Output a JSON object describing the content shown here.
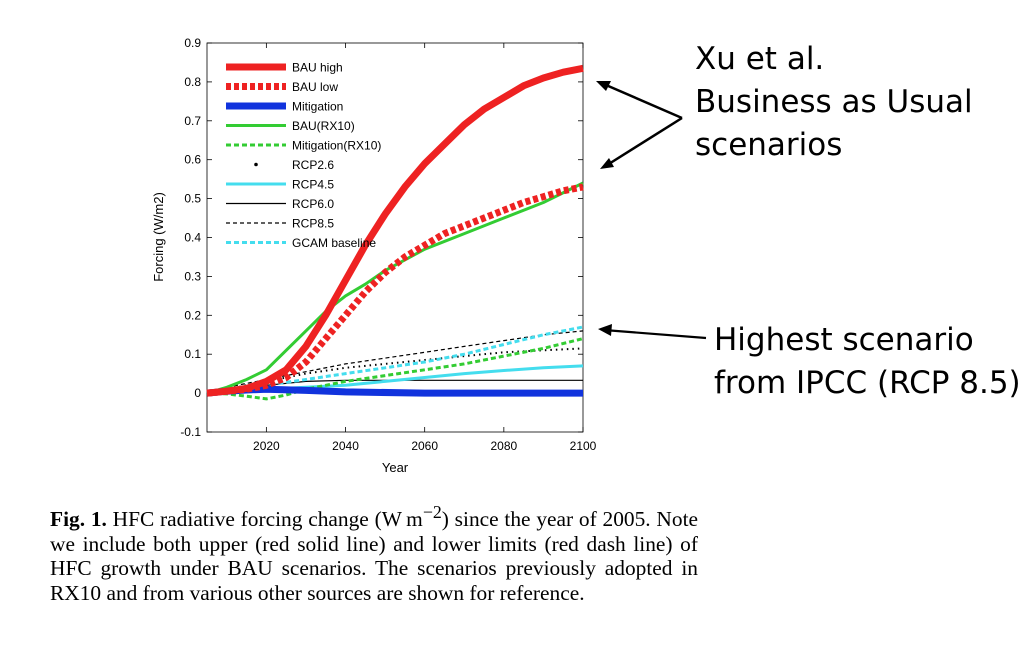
{
  "chart_data": {
    "type": "line",
    "xlabel": "Year",
    "ylabel": "Forcing (W/m2)",
    "xlim": [
      2005,
      2100
    ],
    "ylim": [
      -0.1,
      0.9
    ],
    "x_ticks": [
      2020,
      2040,
      2060,
      2080,
      2100
    ],
    "y_ticks": [
      -0.1,
      0,
      0.1,
      0.2,
      0.3,
      0.4,
      0.5,
      0.6,
      0.7,
      0.8,
      0.9
    ],
    "grid": false,
    "legend_position": "top-left",
    "series": [
      {
        "name": "BAU high",
        "color": "#ee2222",
        "style": "solid-thick",
        "x": [
          2005,
          2010,
          2015,
          2020,
          2025,
          2030,
          2035,
          2040,
          2045,
          2050,
          2055,
          2060,
          2065,
          2070,
          2075,
          2080,
          2085,
          2090,
          2095,
          2100
        ],
        "y": [
          0,
          0.005,
          0.012,
          0.03,
          0.06,
          0.12,
          0.2,
          0.29,
          0.38,
          0.46,
          0.53,
          0.59,
          0.64,
          0.69,
          0.73,
          0.76,
          0.79,
          0.81,
          0.825,
          0.835
        ]
      },
      {
        "name": "BAU low",
        "color": "#ee2222",
        "style": "dash-thick",
        "x": [
          2005,
          2010,
          2015,
          2020,
          2025,
          2030,
          2035,
          2040,
          2045,
          2050,
          2055,
          2060,
          2065,
          2070,
          2075,
          2080,
          2085,
          2090,
          2095,
          2100
        ],
        "y": [
          0,
          0.005,
          0.01,
          0.02,
          0.04,
          0.08,
          0.14,
          0.2,
          0.26,
          0.31,
          0.35,
          0.38,
          0.41,
          0.43,
          0.45,
          0.47,
          0.49,
          0.505,
          0.52,
          0.53
        ]
      },
      {
        "name": "Mitigation",
        "color": "#1133dd",
        "style": "solid-thick",
        "x": [
          2005,
          2010,
          2015,
          2020,
          2030,
          2040,
          2060,
          2080,
          2100
        ],
        "y": [
          0,
          0.005,
          0.008,
          0.01,
          0.007,
          0.003,
          0.0,
          0.0,
          0.0
        ]
      },
      {
        "name": "BAU(RX10)",
        "color": "#33cc33",
        "style": "solid",
        "x": [
          2005,
          2010,
          2015,
          2020,
          2025,
          2030,
          2035,
          2040,
          2045,
          2050,
          2060,
          2070,
          2080,
          2090,
          2100
        ],
        "y": [
          0,
          0.015,
          0.035,
          0.06,
          0.11,
          0.16,
          0.21,
          0.25,
          0.28,
          0.315,
          0.37,
          0.41,
          0.45,
          0.49,
          0.54
        ]
      },
      {
        "name": "Mitigation(RX10)",
        "color": "#33cc33",
        "style": "dash",
        "x": [
          2005,
          2010,
          2015,
          2020,
          2025,
          2030,
          2040,
          2050,
          2060,
          2070,
          2080,
          2090,
          2100
        ],
        "y": [
          0,
          -0.002,
          -0.008,
          -0.015,
          -0.005,
          0.01,
          0.03,
          0.045,
          0.06,
          0.075,
          0.095,
          0.115,
          0.14
        ]
      },
      {
        "name": "RCP2.6",
        "color": "#000000",
        "style": "dot",
        "x": [
          2005,
          2010,
          2020,
          2030,
          2040,
          2050,
          2060,
          2070,
          2080,
          2090,
          2100
        ],
        "y": [
          0,
          0.01,
          0.03,
          0.05,
          0.065,
          0.075,
          0.085,
          0.095,
          0.105,
          0.11,
          0.115
        ]
      },
      {
        "name": "RCP4.5",
        "color": "#44ddee",
        "style": "solid",
        "x": [
          2005,
          2010,
          2020,
          2030,
          2040,
          2050,
          2060,
          2070,
          2080,
          2090,
          2100
        ],
        "y": [
          0,
          0.005,
          0.01,
          0.015,
          0.02,
          0.03,
          0.04,
          0.05,
          0.058,
          0.065,
          0.07
        ]
      },
      {
        "name": "RCP6.0",
        "color": "#000000",
        "style": "solid-thin",
        "x": [
          2005,
          2010,
          2020,
          2030,
          2040,
          2050,
          2060,
          2070,
          2080,
          2090,
          2100
        ],
        "y": [
          0,
          0.01,
          0.02,
          0.03,
          0.033,
          0.033,
          0.033,
          0.033,
          0.033,
          0.033,
          0.033
        ]
      },
      {
        "name": "RCP8.5",
        "color": "#000000",
        "style": "dash-thin",
        "x": [
          2005,
          2010,
          2020,
          2030,
          2040,
          2050,
          2060,
          2070,
          2080,
          2090,
          2100
        ],
        "y": [
          0,
          0.015,
          0.035,
          0.055,
          0.075,
          0.09,
          0.105,
          0.12,
          0.135,
          0.15,
          0.16
        ]
      },
      {
        "name": "GCAM baseline",
        "color": "#44ddee",
        "style": "dash",
        "x": [
          2005,
          2010,
          2020,
          2030,
          2040,
          2050,
          2060,
          2070,
          2080,
          2090,
          2100
        ],
        "y": [
          0,
          0.005,
          0.02,
          0.035,
          0.05,
          0.065,
          0.08,
          0.1,
          0.125,
          0.15,
          0.17
        ]
      }
    ]
  },
  "annotations": {
    "xu_lines": [
      "Xu et al.",
      "Business as Usual",
      "scenarios"
    ],
    "ipcc_lines": [
      "Highest scenario",
      "from IPCC (RCP 8.5)"
    ]
  },
  "caption": {
    "label": "Fig. 1.",
    "text_before": " HFC radiative forcing change (W m",
    "superscript": "−2",
    "text_after": ") since the year of 2005. Note we include both upper (red solid line) and lower limits (red dash line) of HFC growth under BAU scenarios. The scenar­ios previously adopted in RX10 and from various other sources are shown for reference."
  }
}
